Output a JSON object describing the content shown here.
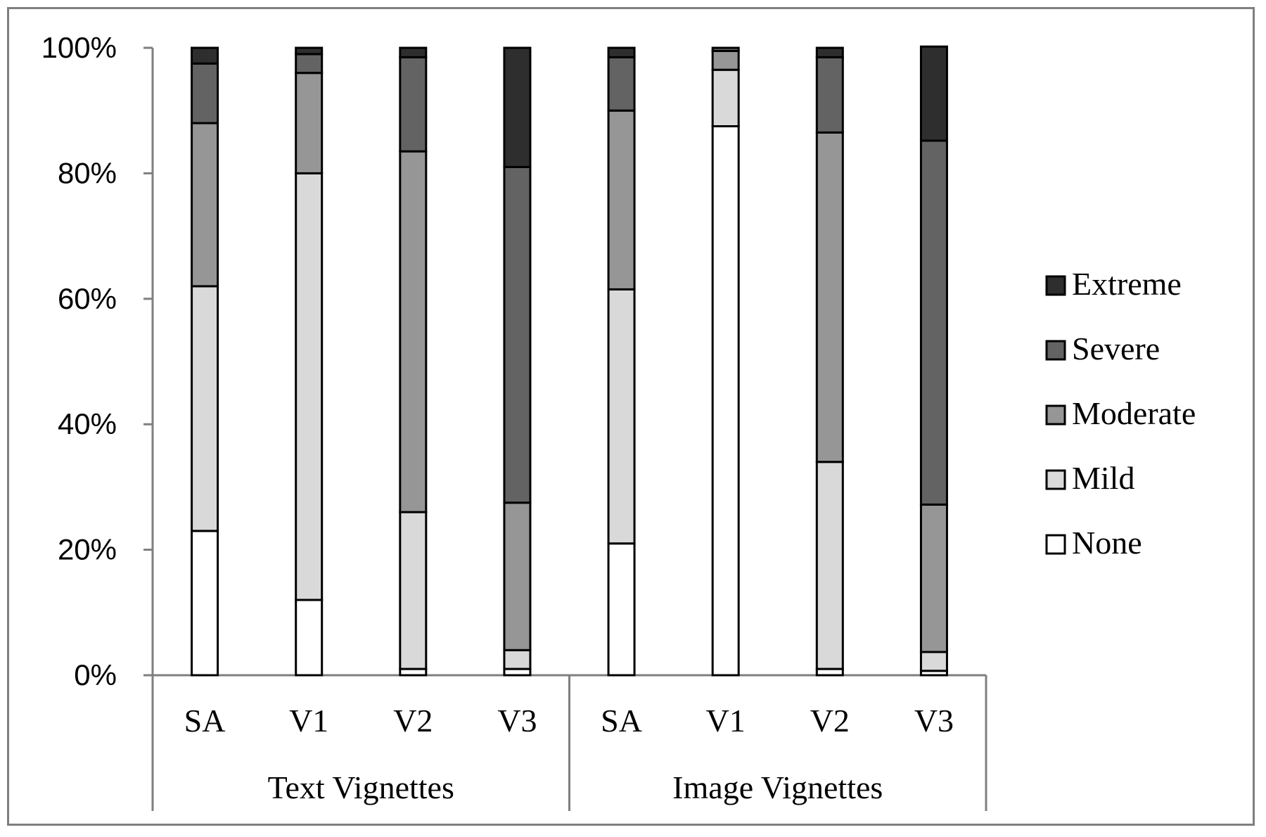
{
  "chart_data": {
    "type": "bar",
    "stacked": true,
    "percent": true,
    "categories": [
      "SA",
      "V1",
      "V2",
      "V3",
      "SA",
      "V1",
      "V2",
      "V3"
    ],
    "groups": [
      {
        "label": "Text Vignettes",
        "categories": [
          "SA",
          "V1",
          "V2",
          "V3"
        ]
      },
      {
        "label": "Image Vignettes",
        "categories": [
          "SA",
          "V1",
          "V2",
          "V3"
        ]
      }
    ],
    "series": [
      {
        "name": "None",
        "color": "#ffffff",
        "values": [
          23,
          12,
          1,
          1,
          21,
          87.5,
          1,
          0.7
        ]
      },
      {
        "name": "Mild",
        "color": "#d9d9d9",
        "values": [
          39,
          68,
          25,
          3,
          40.5,
          9,
          33,
          3
        ]
      },
      {
        "name": "Moderate",
        "color": "#969696",
        "values": [
          26,
          16,
          57.5,
          23.5,
          28.5,
          3,
          52.5,
          23.5
        ]
      },
      {
        "name": "Severe",
        "color": "#636363",
        "values": [
          9.5,
          3,
          15,
          53.5,
          8.5,
          0.5,
          12,
          58
        ]
      },
      {
        "name": "Extreme",
        "color": "#2e2e2e",
        "values": [
          2.5,
          1,
          1.5,
          19,
          1.5,
          0,
          1.5,
          15
        ]
      }
    ],
    "y_ticks": [
      "0%",
      "20%",
      "40%",
      "60%",
      "80%",
      "100%"
    ],
    "ylim": [
      0,
      100
    ],
    "legend_order": [
      "Extreme",
      "Severe",
      "Moderate",
      "Mild",
      "None"
    ],
    "legend_position": "right",
    "grid": false
  }
}
